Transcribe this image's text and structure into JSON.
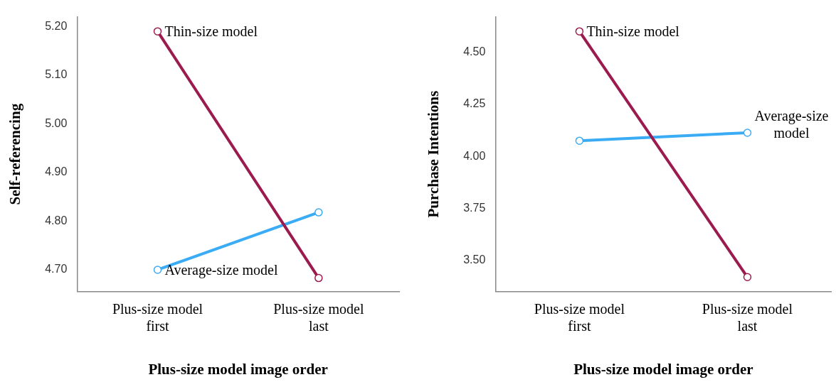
{
  "chart_data": [
    {
      "type": "line",
      "xlabel": "Plus-size model image order",
      "ylabel": "Self-referencing",
      "categories": [
        "Plus-size model first",
        "Plus-size model last"
      ],
      "series": [
        {
          "color": "#9b1b4f",
          "values": [
            5.19,
            4.683
          ]
        },
        {
          "color": "#3aabf5",
          "values": [
            4.7,
            4.818
          ]
        }
      ],
      "ylim": [
        4.655,
        5.22
      ],
      "yticks": [
        {
          "value": 4.7,
          "label": "4.70"
        },
        {
          "value": 4.8,
          "label": "4.80"
        },
        {
          "value": 4.9,
          "label": "4.90"
        },
        {
          "value": 5.0,
          "label": "5.00"
        },
        {
          "value": 5.1,
          "label": "5.10"
        },
        {
          "value": 5.2,
          "label": "5.20"
        }
      ],
      "annotations": [
        {
          "text": "Thin-size model",
          "x": "Plus-size model first",
          "y": 5.19
        },
        {
          "text": "Average-size model",
          "x": "Plus-size model first",
          "y": 4.7
        }
      ],
      "grid": false,
      "legend": false,
      "marker": "circle",
      "line_style": "solid"
    },
    {
      "type": "line",
      "xlabel": "Plus-size model image order",
      "ylabel": "Purchase Intentions",
      "categories": [
        "Plus-size model first",
        "Plus-size model last"
      ],
      "series": [
        {
          "color": "#9b1b4f",
          "values": [
            4.6,
            3.42
          ]
        },
        {
          "color": "#3aabf5",
          "values": [
            4.075,
            4.113
          ]
        }
      ],
      "ylim": [
        3.35,
        4.67
      ],
      "yticks": [
        {
          "value": 3.5,
          "label": "3.50"
        },
        {
          "value": 3.75,
          "label": "3.75"
        },
        {
          "value": 4.0,
          "label": "4.00"
        },
        {
          "value": 4.25,
          "label": "4.25"
        },
        {
          "value": 4.5,
          "label": "4.50"
        }
      ],
      "annotations": [
        {
          "text": "Thin-size model",
          "x": "Plus-size model first",
          "y": 4.6
        },
        {
          "text": "Average-size model",
          "x": "Plus-size model last",
          "y": 4.113
        }
      ],
      "grid": false,
      "legend": false,
      "marker": "circle",
      "line_style": "solid"
    }
  ]
}
